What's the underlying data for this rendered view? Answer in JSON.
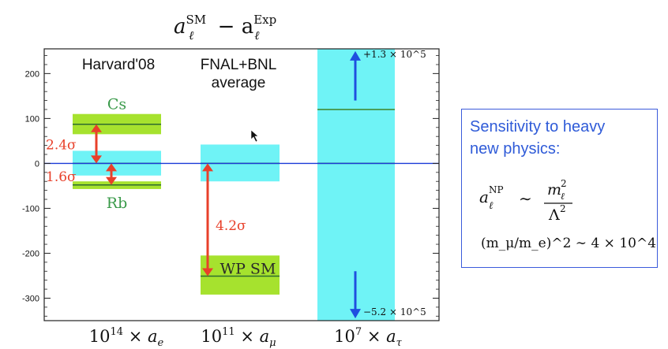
{
  "chart_data": {
    "type": "bar",
    "title": "a_ℓ^SM − a_ℓ^Exp",
    "ylim": [
      -350,
      255
    ],
    "yticks": [
      -300,
      -200,
      -100,
      0,
      100,
      200
    ],
    "grid": false,
    "columns": [
      {
        "label": "10^14 × a_e",
        "header": [
          "Harvard'08"
        ]
      },
      {
        "label": "10^11 × a_μ",
        "header": [
          "FNAL+BNL",
          "average"
        ]
      },
      {
        "label": "10^7 × a_τ",
        "header": []
      }
    ],
    "bands": [
      {
        "col": 0,
        "name": "Cs",
        "center": 87,
        "low": 65,
        "high": 110,
        "color": "#a6e22e"
      },
      {
        "col": 0,
        "name": "",
        "center": 0,
        "low": -27,
        "high": 28,
        "color": "#6ff3f6"
      },
      {
        "col": 0,
        "name": "Rb",
        "center": -48,
        "low": -57,
        "high": -40,
        "color": "#a6e22e"
      },
      {
        "col": 1,
        "name": "",
        "center": 0,
        "low": -40,
        "high": 42,
        "color": "#6ff3f6"
      },
      {
        "col": 1,
        "name": "WP SM",
        "center": -251,
        "low": -292,
        "high": -205,
        "color": "#a6e22e"
      },
      {
        "col": 2,
        "name": "",
        "center": 0,
        "low": -350,
        "high": 255,
        "color": "#6ff3f6"
      },
      {
        "col": 2,
        "name": "",
        "center": 120,
        "low": 120,
        "high": 120,
        "color": "#4aa05a"
      }
    ],
    "tensions": [
      {
        "col": 0,
        "from": 87,
        "to": 0,
        "label": "2.4σ"
      },
      {
        "col": 0,
        "from": 0,
        "to": -48,
        "label": "1.6σ"
      },
      {
        "col": 1,
        "from": 0,
        "to": -251,
        "label": "4.2σ"
      }
    ],
    "tau_arrows": [
      {
        "label": "+1.3 × 10^5",
        "from": 140,
        "to": 250
      },
      {
        "label": "−5.2 × 10^5",
        "from": -240,
        "to": -345
      }
    ]
  },
  "colors": {
    "tension_arrow": "#e8402a",
    "tau_arrow": "#1f4fe0",
    "zero_line": "#1a3ad8",
    "label_green": "#3a9a4a",
    "box_text": "#2f5bd8"
  },
  "sidebox": {
    "title_line1": "Sensitivity to heavy",
    "title_line2": "new physics:",
    "formula1_lhs": "a",
    "formula1_sup": "NP",
    "formula1_sub": "ℓ",
    "formula1_rel": "∼",
    "formula1_num": "m",
    "formula1_num_sup": "2",
    "formula1_num_sub": "ℓ",
    "formula1_den": "Λ",
    "formula1_den_sup": "2",
    "formula2": "(m_μ/m_e)^2 ∼ 4 × 10^4"
  }
}
